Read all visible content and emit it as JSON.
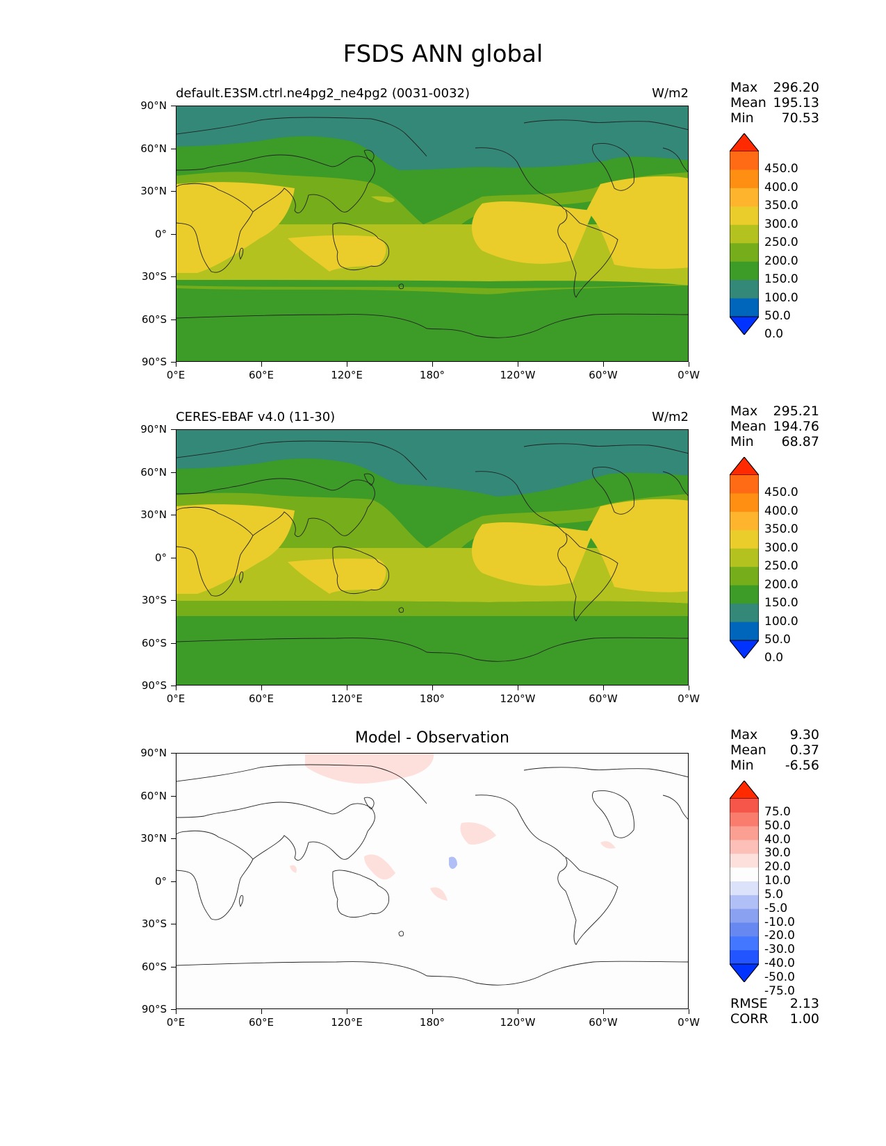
{
  "title": "FSDS ANN global",
  "lat_ticks": [
    "90°N",
    "60°N",
    "30°N",
    "0°",
    "30°S",
    "60°S",
    "90°S"
  ],
  "lon_ticks": [
    "0°E",
    "60°E",
    "120°E",
    "180°",
    "120°W",
    "60°W",
    "0°W"
  ],
  "colors": {
    "main_levels": [
      "#0033ff",
      "#0066bb",
      "#338877",
      "#3d9b28",
      "#76ae1b",
      "#b3c21f",
      "#eacd2a",
      "#ffb42e",
      "#ff8f12",
      "#ff6a14",
      "#ff2a00"
    ],
    "diff_levels": [
      "#0033ff",
      "#2255ff",
      "#4477ff",
      "#6688f0",
      "#8aa0f0",
      "#b0bff5",
      "#dde2fb",
      "#fdfdfd",
      "#fde0dc",
      "#fcc0b8",
      "#fb9f92",
      "#f97c6d",
      "#f6554a",
      "#ff2a00"
    ]
  },
  "panels": [
    {
      "id": "test",
      "title_left": "default.E3SM.ctrl.ne4pg2_ne4pg2 (0031-0032)",
      "units": "W/m2",
      "stats": [
        {
          "k": "Max",
          "v": "296.20"
        },
        {
          "k": "Mean",
          "v": "195.13"
        },
        {
          "k": "Min",
          "v": "70.53"
        }
      ],
      "colorbar_labels": [
        "450.0",
        "400.0",
        "350.0",
        "300.0",
        "250.0",
        "200.0",
        "150.0",
        "100.0",
        "50.0",
        "0.0"
      ]
    },
    {
      "id": "ref",
      "title_left": "CERES-EBAF v4.0 (11-30)",
      "units": "W/m2",
      "stats": [
        {
          "k": "Max",
          "v": "295.21"
        },
        {
          "k": "Mean",
          "v": "194.76"
        },
        {
          "k": "Min",
          "v": "68.87"
        }
      ],
      "colorbar_labels": [
        "450.0",
        "400.0",
        "350.0",
        "300.0",
        "250.0",
        "200.0",
        "150.0",
        "100.0",
        "50.0",
        "0.0"
      ]
    },
    {
      "id": "diff",
      "title_center": "Model - Observation",
      "stats": [
        {
          "k": "Max",
          "v": "9.30"
        },
        {
          "k": "Mean",
          "v": "0.37"
        },
        {
          "k": "Min",
          "v": "-6.56"
        }
      ],
      "colorbar_labels": [
        "75.0",
        "50.0",
        "40.0",
        "30.0",
        "20.0",
        "10.0",
        "5.0",
        "-5.0",
        "-10.0",
        "-20.0",
        "-30.0",
        "-40.0",
        "-50.0",
        "-75.0"
      ],
      "extra_stats": [
        {
          "k": "RMSE",
          "v": "2.13"
        },
        {
          "k": "CORR",
          "v": "1.00"
        }
      ]
    }
  ],
  "chart_data": [
    {
      "type": "heatmap",
      "title": "default.E3SM.ctrl.ne4pg2_ne4pg2 (0031-0032)",
      "units": "W/m2",
      "levels": [
        0,
        50,
        100,
        150,
        200,
        250,
        300,
        350,
        400,
        450
      ],
      "xlim": [
        0,
        360
      ],
      "ylim": [
        -90,
        90
      ],
      "max": 296.2,
      "mean": 195.13,
      "min": 70.53
    },
    {
      "type": "heatmap",
      "title": "CERES-EBAF v4.0 (11-30)",
      "units": "W/m2",
      "levels": [
        0,
        50,
        100,
        150,
        200,
        250,
        300,
        350,
        400,
        450
      ],
      "xlim": [
        0,
        360
      ],
      "ylim": [
        -90,
        90
      ],
      "max": 295.21,
      "mean": 194.76,
      "min": 68.87
    },
    {
      "type": "heatmap",
      "title": "Model - Observation",
      "levels": [
        -75,
        -50,
        -40,
        -30,
        -20,
        -10,
        -5,
        5,
        10,
        20,
        30,
        40,
        50,
        75
      ],
      "xlim": [
        0,
        360
      ],
      "ylim": [
        -90,
        90
      ],
      "max": 9.3,
      "mean": 0.37,
      "min": -6.56,
      "rmse": 2.13,
      "corr": 1.0
    }
  ]
}
